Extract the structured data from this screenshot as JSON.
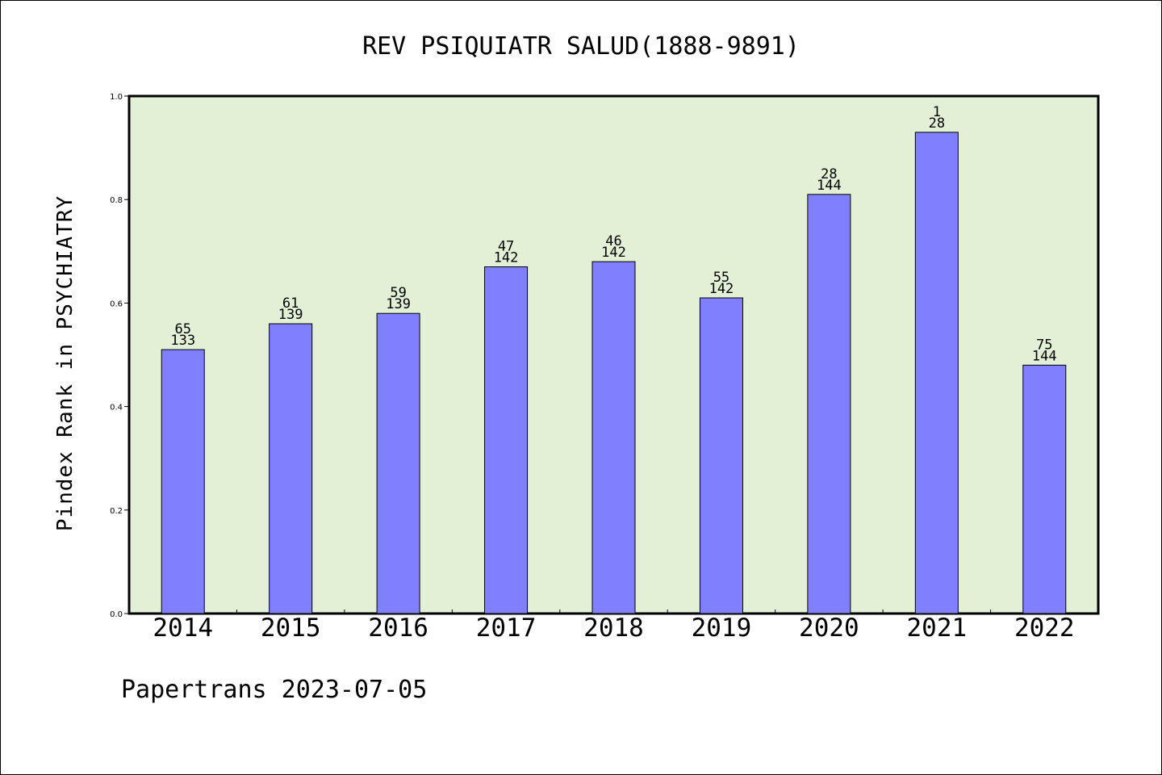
{
  "chart_data": {
    "type": "bar",
    "title": "REV PSIQUIATR SALUD(1888-9891)",
    "ylabel": "Pindex Rank in PSYCHIATRY",
    "xlabel": "",
    "categories": [
      "2014",
      "2015",
      "2016",
      "2017",
      "2018",
      "2019",
      "2020",
      "2021",
      "2022"
    ],
    "values": [
      0.51,
      0.56,
      0.58,
      0.67,
      0.68,
      0.61,
      0.81,
      0.93,
      0.48
    ],
    "rank_labels": [
      "65",
      "61",
      "59",
      "47",
      "46",
      "55",
      "28",
      "1",
      "75"
    ],
    "total_labels": [
      "133",
      "139",
      "139",
      "142",
      "142",
      "142",
      "144",
      "28",
      "144"
    ],
    "ylim": [
      0,
      1
    ],
    "yticks": [
      "0.0",
      "0.2",
      "0.4",
      "0.6",
      "0.8",
      "1.0"
    ],
    "grid": false,
    "colors": {
      "bar": "#8080ff",
      "plot_background": "#e2f0d6",
      "axis": "#000000"
    }
  },
  "footer": "Papertrans 2023-07-05"
}
